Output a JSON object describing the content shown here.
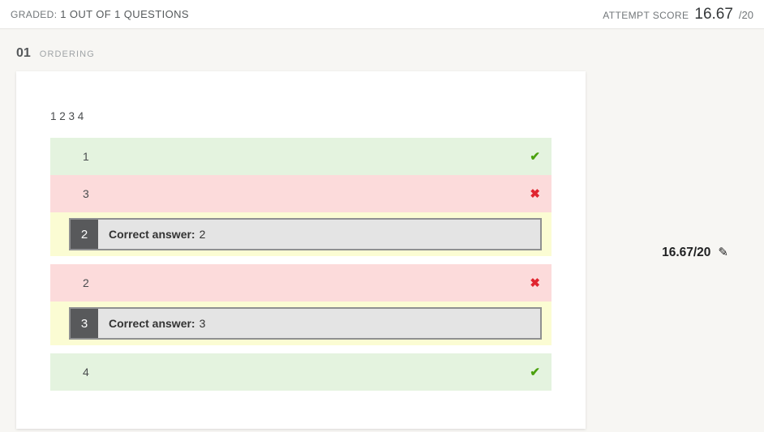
{
  "header": {
    "graded_label": "GRADED:",
    "graded_value": "1 OUT OF 1 QUESTIONS",
    "attempt_score_label": "ATTEMPT SCORE",
    "attempt_score_value": "16.67",
    "attempt_score_total": "/20"
  },
  "question": {
    "number": "01",
    "type_label": "ORDERING",
    "score": "16.67/20",
    "prompt": "1 2 3 4",
    "rows": [
      {
        "type": "answer",
        "status": "correct",
        "text": "1"
      },
      {
        "type": "answer",
        "status": "incorrect",
        "text": "3"
      },
      {
        "type": "correction",
        "badge": "2",
        "label": "Correct answer:",
        "value": "2"
      },
      {
        "type": "answer",
        "status": "incorrect",
        "text": "2"
      },
      {
        "type": "correction",
        "badge": "3",
        "label": "Correct answer:",
        "value": "3"
      },
      {
        "type": "answer",
        "status": "correct",
        "text": "4"
      }
    ]
  },
  "icons": {
    "check": "✔",
    "cross": "✖",
    "edit": "✎"
  },
  "colors": {
    "page_bg": "#f7f6f3",
    "correct_row_bg": "#e4f3df",
    "incorrect_row_bg": "#fcdbdb",
    "correction_row_bg": "#fbfcd3",
    "check_green": "#4ba10e",
    "x_red": "#e0252f"
  }
}
